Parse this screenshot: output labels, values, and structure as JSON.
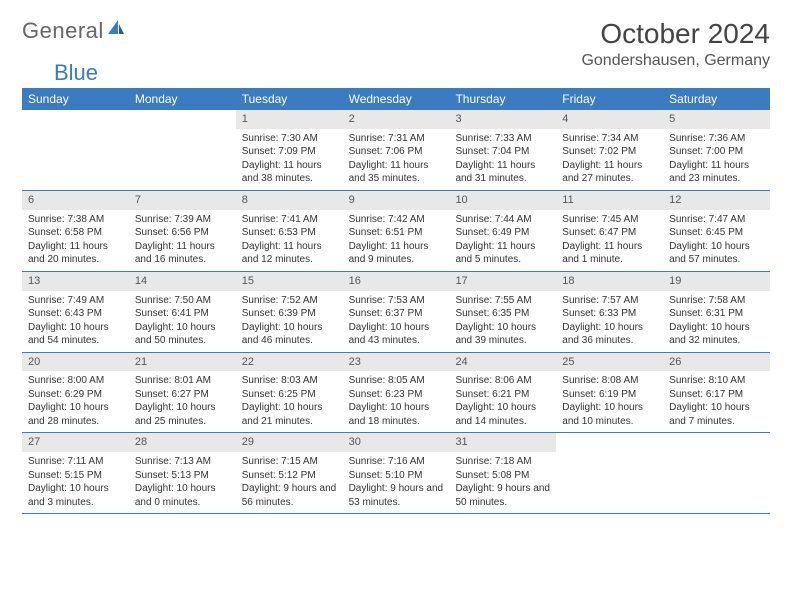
{
  "brand": {
    "part1": "General",
    "part2": "Blue"
  },
  "title": "October 2024",
  "location": "Gondershausen, Germany",
  "colors": {
    "header_bg": "#3b7bbf",
    "header_text": "#ffffff",
    "daynum_bg": "#e8e8e8",
    "rule": "#3b7bbf"
  },
  "weekdays": [
    "Sunday",
    "Monday",
    "Tuesday",
    "Wednesday",
    "Thursday",
    "Friday",
    "Saturday"
  ],
  "weeks": [
    [
      null,
      null,
      {
        "n": "1",
        "sr": "7:30 AM",
        "ss": "7:09 PM",
        "dl": "11 hours and 38 minutes."
      },
      {
        "n": "2",
        "sr": "7:31 AM",
        "ss": "7:06 PM",
        "dl": "11 hours and 35 minutes."
      },
      {
        "n": "3",
        "sr": "7:33 AM",
        "ss": "7:04 PM",
        "dl": "11 hours and 31 minutes."
      },
      {
        "n": "4",
        "sr": "7:34 AM",
        "ss": "7:02 PM",
        "dl": "11 hours and 27 minutes."
      },
      {
        "n": "5",
        "sr": "7:36 AM",
        "ss": "7:00 PM",
        "dl": "11 hours and 23 minutes."
      }
    ],
    [
      {
        "n": "6",
        "sr": "7:38 AM",
        "ss": "6:58 PM",
        "dl": "11 hours and 20 minutes."
      },
      {
        "n": "7",
        "sr": "7:39 AM",
        "ss": "6:56 PM",
        "dl": "11 hours and 16 minutes."
      },
      {
        "n": "8",
        "sr": "7:41 AM",
        "ss": "6:53 PM",
        "dl": "11 hours and 12 minutes."
      },
      {
        "n": "9",
        "sr": "7:42 AM",
        "ss": "6:51 PM",
        "dl": "11 hours and 9 minutes."
      },
      {
        "n": "10",
        "sr": "7:44 AM",
        "ss": "6:49 PM",
        "dl": "11 hours and 5 minutes."
      },
      {
        "n": "11",
        "sr": "7:45 AM",
        "ss": "6:47 PM",
        "dl": "11 hours and 1 minute."
      },
      {
        "n": "12",
        "sr": "7:47 AM",
        "ss": "6:45 PM",
        "dl": "10 hours and 57 minutes."
      }
    ],
    [
      {
        "n": "13",
        "sr": "7:49 AM",
        "ss": "6:43 PM",
        "dl": "10 hours and 54 minutes."
      },
      {
        "n": "14",
        "sr": "7:50 AM",
        "ss": "6:41 PM",
        "dl": "10 hours and 50 minutes."
      },
      {
        "n": "15",
        "sr": "7:52 AM",
        "ss": "6:39 PM",
        "dl": "10 hours and 46 minutes."
      },
      {
        "n": "16",
        "sr": "7:53 AM",
        "ss": "6:37 PM",
        "dl": "10 hours and 43 minutes."
      },
      {
        "n": "17",
        "sr": "7:55 AM",
        "ss": "6:35 PM",
        "dl": "10 hours and 39 minutes."
      },
      {
        "n": "18",
        "sr": "7:57 AM",
        "ss": "6:33 PM",
        "dl": "10 hours and 36 minutes."
      },
      {
        "n": "19",
        "sr": "7:58 AM",
        "ss": "6:31 PM",
        "dl": "10 hours and 32 minutes."
      }
    ],
    [
      {
        "n": "20",
        "sr": "8:00 AM",
        "ss": "6:29 PM",
        "dl": "10 hours and 28 minutes."
      },
      {
        "n": "21",
        "sr": "8:01 AM",
        "ss": "6:27 PM",
        "dl": "10 hours and 25 minutes."
      },
      {
        "n": "22",
        "sr": "8:03 AM",
        "ss": "6:25 PM",
        "dl": "10 hours and 21 minutes."
      },
      {
        "n": "23",
        "sr": "8:05 AM",
        "ss": "6:23 PM",
        "dl": "10 hours and 18 minutes."
      },
      {
        "n": "24",
        "sr": "8:06 AM",
        "ss": "6:21 PM",
        "dl": "10 hours and 14 minutes."
      },
      {
        "n": "25",
        "sr": "8:08 AM",
        "ss": "6:19 PM",
        "dl": "10 hours and 10 minutes."
      },
      {
        "n": "26",
        "sr": "8:10 AM",
        "ss": "6:17 PM",
        "dl": "10 hours and 7 minutes."
      }
    ],
    [
      {
        "n": "27",
        "sr": "7:11 AM",
        "ss": "5:15 PM",
        "dl": "10 hours and 3 minutes."
      },
      {
        "n": "28",
        "sr": "7:13 AM",
        "ss": "5:13 PM",
        "dl": "10 hours and 0 minutes."
      },
      {
        "n": "29",
        "sr": "7:15 AM",
        "ss": "5:12 PM",
        "dl": "9 hours and 56 minutes."
      },
      {
        "n": "30",
        "sr": "7:16 AM",
        "ss": "5:10 PM",
        "dl": "9 hours and 53 minutes."
      },
      {
        "n": "31",
        "sr": "7:18 AM",
        "ss": "5:08 PM",
        "dl": "9 hours and 50 minutes."
      },
      null,
      null
    ]
  ],
  "labels": {
    "sunrise": "Sunrise: ",
    "sunset": "Sunset: ",
    "daylight": "Daylight: "
  }
}
